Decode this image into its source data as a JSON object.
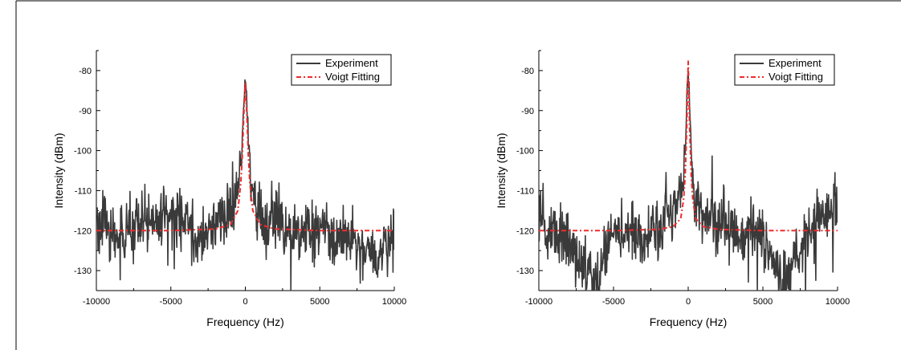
{
  "chart_data": [
    {
      "type": "line",
      "xlabel": "Frequency (Hz)",
      "ylabel": "Intensity (dBm)",
      "xlim": [
        -10000,
        10000
      ],
      "ylim": [
        -135,
        -75
      ],
      "xticks": [
        -10000,
        -5000,
        0,
        5000,
        10000
      ],
      "yticks": [
        -80,
        -90,
        -100,
        -110,
        -120,
        -130
      ],
      "grid": false,
      "legend_position": "top-right",
      "series": [
        {
          "name": "Experiment",
          "style": "solid",
          "color": "#3a3a3a",
          "noise_floor_dBm": -120,
          "x": [
            -10000,
            -8400,
            -7000,
            -5000,
            -3000,
            -2000,
            -1500,
            -1000,
            -700,
            -450,
            -300,
            -200,
            -120,
            -60,
            0,
            60,
            120,
            200,
            300,
            450,
            700,
            1000,
            1500,
            2000,
            3000,
            5000,
            7000,
            8800,
            10000
          ],
          "values": [
            -117,
            -122,
            -119,
            -116,
            -121,
            -118,
            -117,
            -115,
            -112,
            -108,
            -102,
            -96,
            -90,
            -86,
            -82,
            -85,
            -90,
            -97,
            -104,
            -110,
            -114,
            -116,
            -118,
            -117,
            -121,
            -120,
            -123,
            -127,
            -119
          ]
        },
        {
          "name": "Voigt Fitting",
          "style": "dash-dot",
          "color": "#ee2c2c",
          "x": [
            -10000,
            -5000,
            -2000,
            -1000,
            -500,
            -300,
            -200,
            -100,
            0,
            100,
            200,
            300,
            500,
            1000,
            2000,
            5000,
            10000
          ],
          "values": [
            -120,
            -120,
            -119.6,
            -118.5,
            -115,
            -108,
            -101,
            -91,
            -83,
            -91,
            -101,
            -108,
            -115,
            -118.5,
            -119.6,
            -120,
            -120
          ]
        }
      ]
    },
    {
      "type": "line",
      "xlabel": "Frequency (Hz)",
      "ylabel": "Intensity (dBm)",
      "xlim": [
        -10000,
        10000
      ],
      "ylim": [
        -135,
        -75
      ],
      "xticks": [
        -10000,
        -5000,
        0,
        5000,
        10000
      ],
      "yticks": [
        -80,
        -90,
        -100,
        -110,
        -120,
        -130
      ],
      "grid": false,
      "legend_position": "top-right",
      "series": [
        {
          "name": "Experiment",
          "style": "solid",
          "color": "#3a3a3a",
          "noise_floor_dBm": -120,
          "x": [
            -10000,
            -8400,
            -6300,
            -5000,
            -3000,
            -2000,
            -1500,
            -1000,
            -700,
            -450,
            -300,
            -200,
            -120,
            -60,
            0,
            60,
            120,
            200,
            300,
            450,
            700,
            1000,
            1500,
            2000,
            3000,
            5000,
            6300,
            8000,
            10000
          ],
          "values": [
            -118,
            -121,
            -133,
            -120,
            -122,
            -119,
            -116,
            -114,
            -112,
            -110,
            -106,
            -100,
            -92,
            -84,
            -78,
            -84,
            -92,
            -100,
            -106,
            -110,
            -113,
            -116,
            -118,
            -117,
            -120,
            -121,
            -133,
            -121,
            -112
          ]
        },
        {
          "name": "Voigt Fitting",
          "style": "dash-dot",
          "color": "#ee2c2c",
          "x": [
            -10000,
            -5000,
            -2000,
            -1000,
            -500,
            -300,
            -200,
            -100,
            0,
            100,
            200,
            300,
            500,
            1000,
            2000,
            5000,
            10000
          ],
          "values": [
            -120,
            -120,
            -119.7,
            -119,
            -117,
            -112,
            -106,
            -95,
            -77.5,
            -95,
            -106,
            -112,
            -117,
            -119,
            -119.7,
            -120,
            -120
          ]
        }
      ]
    }
  ]
}
